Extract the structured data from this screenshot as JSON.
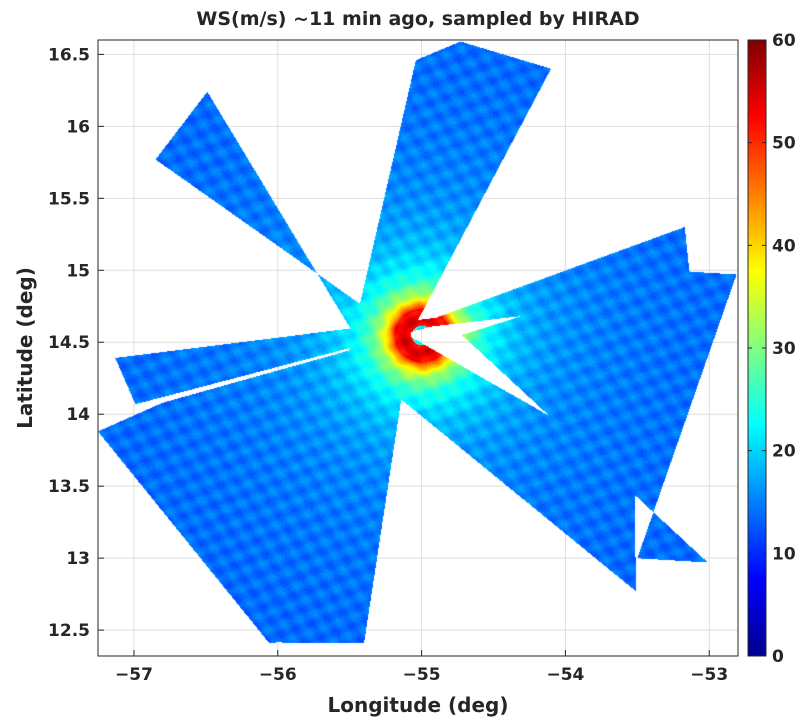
{
  "chart_data": {
    "type": "heatmap",
    "title": "WS(m/s) ~11 min ago, sampled by HIRAD",
    "xlabel": "Longitude (deg)",
    "ylabel": "Latitude (deg)",
    "xlim": [
      -57.25,
      -52.8
    ],
    "ylim": [
      12.32,
      16.6
    ],
    "xticks": [
      -57,
      -56,
      -55,
      -54,
      -53
    ],
    "xtick_labels": [
      "−57",
      "−56",
      "−55",
      "−54",
      "−53"
    ],
    "yticks": [
      12.5,
      13,
      13.5,
      14,
      14.5,
      15,
      15.5,
      16,
      16.5
    ],
    "ytick_labels": [
      "12.5",
      "13",
      "13.5",
      "14",
      "14.5",
      "15",
      "15.5",
      "16",
      "16.5"
    ],
    "grid": true,
    "colormap": "jet",
    "colorbar": {
      "range": [
        0,
        60
      ],
      "ticks": [
        0,
        10,
        20,
        30,
        40,
        50,
        60
      ],
      "tick_labels": [
        "0",
        "10",
        "20",
        "30",
        "40",
        "50",
        "60"
      ],
      "position": "right"
    },
    "storm_center": {
      "lon": -55.0,
      "lat": 14.55
    },
    "wind_field": {
      "eye_radius_deg": 0.07,
      "eye_speed": 12,
      "peak_speed": 55,
      "rmw_deg": 0.18,
      "background_speed": 13
    },
    "swaths": [
      {
        "name": "",
        "polygon": [
          [
            -56.49,
            16.24
          ],
          [
            -56.85,
            15.77
          ],
          [
            -55.22,
            14.62
          ],
          [
            -53.52,
            13.65
          ],
          [
            -53.51,
            12.77
          ],
          [
            -55.25,
            14.19
          ]
        ]
      },
      {
        "name": "",
        "polygon": [
          [
            -55.04,
            16.46
          ],
          [
            -54.73,
            16.59
          ],
          [
            -54.1,
            16.4
          ],
          [
            -55.07,
            14.57
          ],
          [
            -55.4,
            12.41
          ],
          [
            -55.97,
            12.41
          ]
        ]
      },
      {
        "name": "",
        "polygon": [
          [
            -53.17,
            15.3
          ],
          [
            -53.12,
            14.82
          ],
          [
            -54.93,
            14.61
          ],
          [
            -56.99,
            14.07
          ],
          [
            -57.13,
            14.39
          ],
          [
            -54.9,
            14.67
          ]
        ]
      },
      {
        "name": "",
        "polygon": [
          [
            -52.81,
            14.97
          ],
          [
            -53.29,
            15.0
          ],
          [
            -54.72,
            14.55
          ],
          [
            -53.01,
            12.97
          ],
          [
            -53.5,
            13.0
          ]
        ]
      },
      {
        "name": "",
        "polygon": [
          [
            -56.8,
            14.08
          ],
          [
            -57.25,
            13.88
          ],
          [
            -56.06,
            12.41
          ],
          [
            -55.78,
            12.43
          ],
          [
            -55.3,
            14.5
          ]
        ]
      }
    ]
  }
}
